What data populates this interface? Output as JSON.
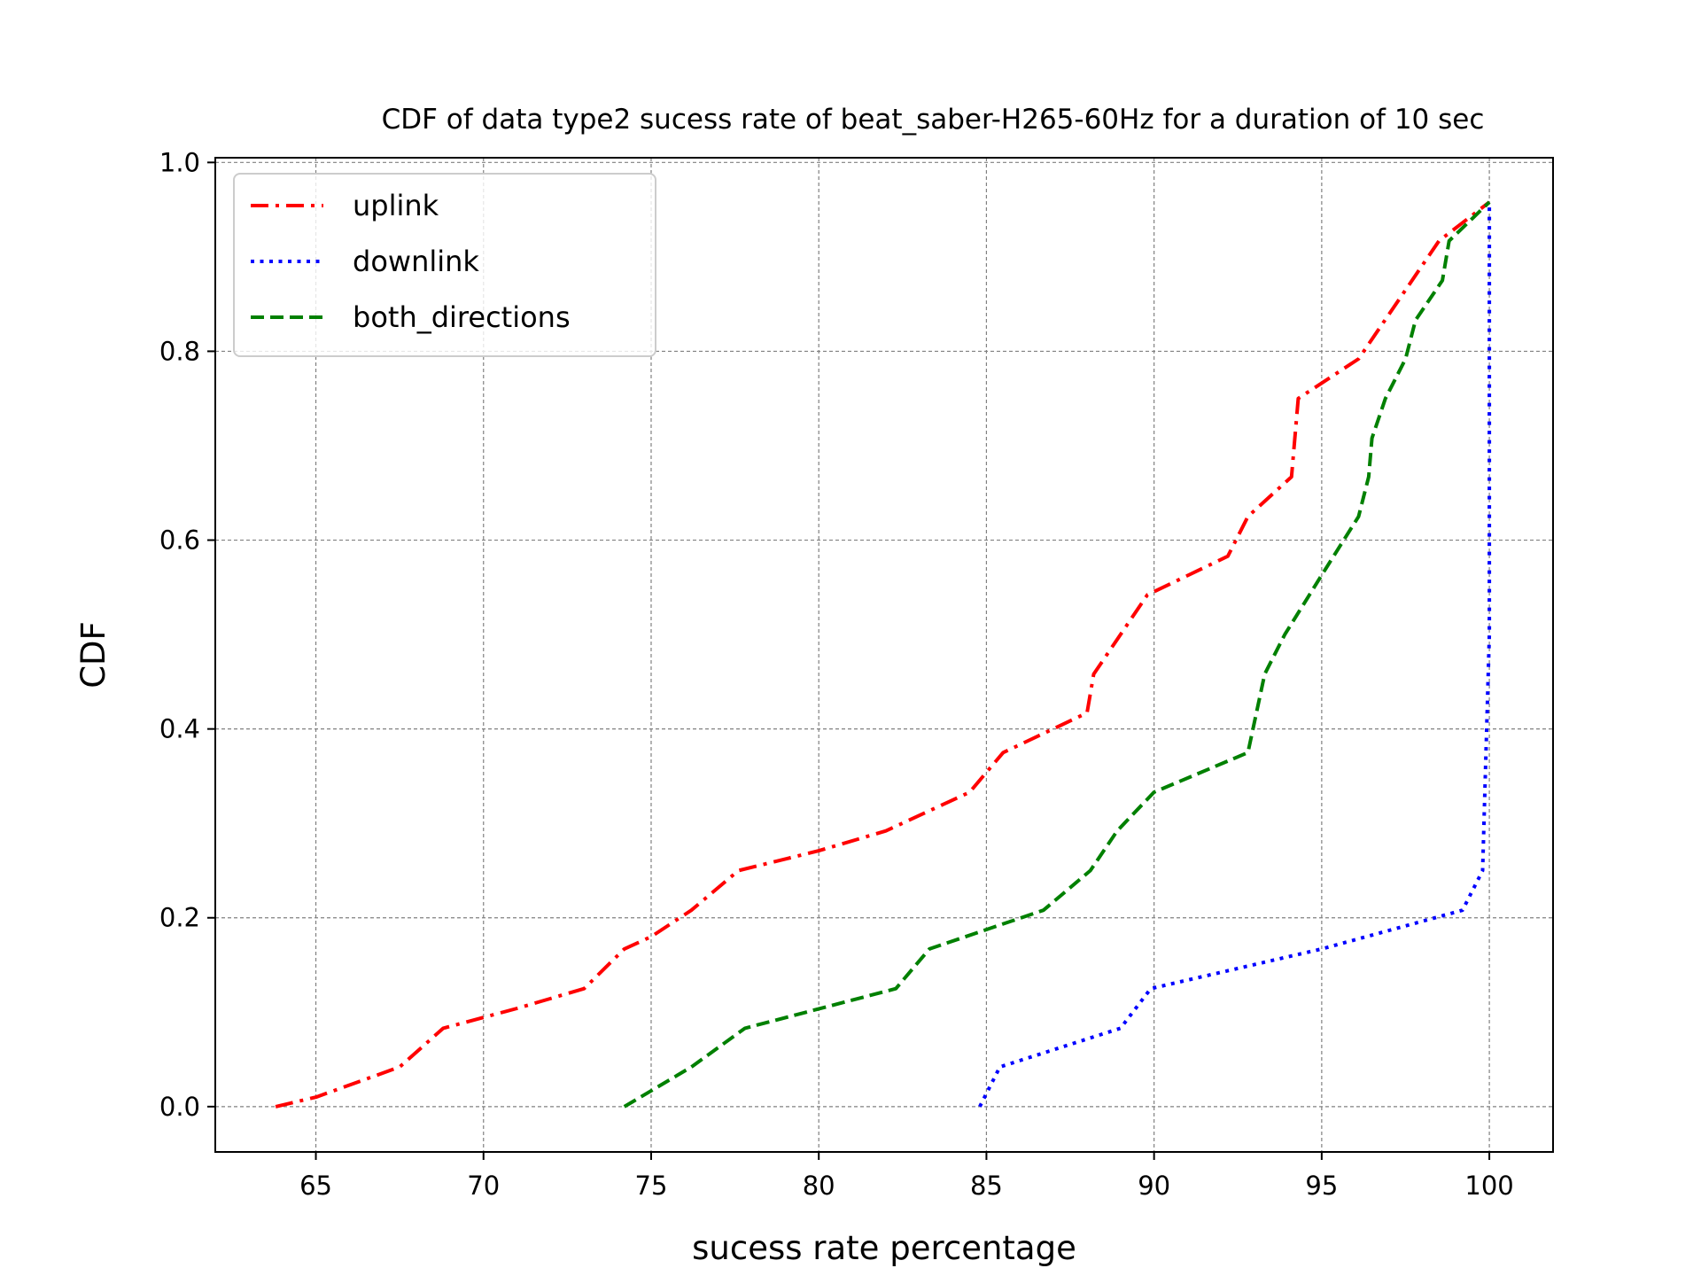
{
  "chart_data": {
    "type": "line",
    "title": "CDF of data type2 sucess rate of beat_saber-H265-60Hz for a duration of 10 sec",
    "xlabel": "sucess rate percentage",
    "ylabel": "CDF",
    "xlim": [
      62.0,
      101.9
    ],
    "ylim": [
      -0.048,
      1.005
    ],
    "xticks": [
      65,
      70,
      75,
      80,
      85,
      90,
      95,
      100
    ],
    "yticks": [
      0.0,
      0.2,
      0.4,
      0.6,
      0.8,
      1.0
    ],
    "xtick_labels": [
      "65",
      "70",
      "75",
      "80",
      "85",
      "90",
      "95",
      "100"
    ],
    "ytick_labels": [
      "0.0",
      "0.2",
      "0.4",
      "0.6",
      "0.8",
      "1.0"
    ],
    "grid": true,
    "legend_position": "top-left",
    "series": [
      {
        "name": "uplink",
        "color": "#ff0000",
        "linestyle": "dashdot",
        "x": [
          63.8,
          65.0,
          67.5,
          68.8,
          71.0,
          73.0,
          74.2,
          75.0,
          76.2,
          77.6,
          80.0,
          82.0,
          84.5,
          85.5,
          88.0,
          88.2,
          89.8,
          92.2,
          92.8,
          94.1,
          94.3,
          96.1,
          98.5,
          100.0
        ],
        "y": [
          0.0,
          0.01,
          0.042,
          0.083,
          0.104,
          0.125,
          0.167,
          0.18,
          0.208,
          0.25,
          0.271,
          0.292,
          0.333,
          0.375,
          0.417,
          0.458,
          0.542,
          0.583,
          0.625,
          0.667,
          0.75,
          0.792,
          0.917,
          0.958
        ]
      },
      {
        "name": "downlink",
        "color": "#0000ff",
        "linestyle": "dotted",
        "x": [
          84.8,
          85.4,
          89.0,
          89.9,
          95.0,
          99.2,
          99.8,
          100.0,
          100.0
        ],
        "y": [
          0.0,
          0.042,
          0.083,
          0.125,
          0.167,
          0.208,
          0.25,
          0.5,
          0.958
        ]
      },
      {
        "name": "both_directions",
        "color": "#008000",
        "linestyle": "dashed",
        "x": [
          74.2,
          76.2,
          77.8,
          82.3,
          83.3,
          86.7,
          88.1,
          88.9,
          90.0,
          92.8,
          93.3,
          93.9,
          95.0,
          96.1,
          96.4,
          96.5,
          96.9,
          97.5,
          97.8,
          98.6,
          98.8,
          100.0
        ],
        "y": [
          0.0,
          0.042,
          0.083,
          0.125,
          0.167,
          0.208,
          0.25,
          0.292,
          0.333,
          0.375,
          0.458,
          0.5,
          0.563,
          0.625,
          0.667,
          0.708,
          0.75,
          0.792,
          0.833,
          0.875,
          0.917,
          0.958
        ]
      }
    ]
  }
}
